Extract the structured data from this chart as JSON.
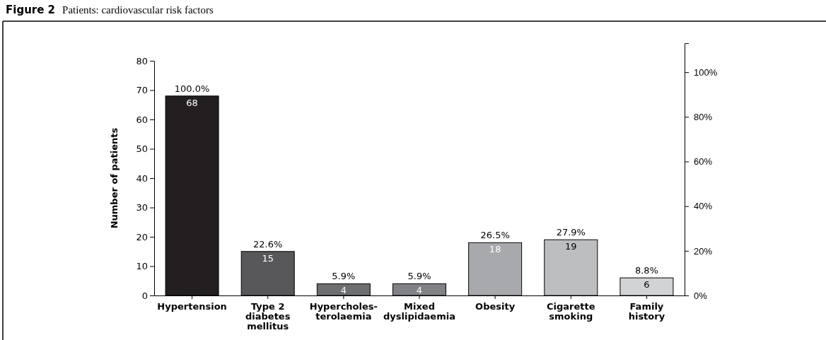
{
  "chart_data": {
    "type": "bar",
    "title": "Figure 2  Patients: cardiovascular risk factors",
    "ylabel": "Number of patients",
    "categories": [
      "Hypertension",
      "Type 2 diabetes mellitus",
      "Hypercholes-terolaemia",
      "Mixed dyslipidaemia",
      "Obesity",
      "Cigarette smoking",
      "Family history"
    ],
    "values": [
      68,
      15,
      4,
      4,
      18,
      19,
      6
    ],
    "colors": [
      "#231f20",
      "#58585a",
      "#6d6e70",
      "#808285",
      "#a7a9ac",
      "#bcbec0",
      "#d1d3d4"
    ],
    "annotations": [
      {
        "text": "100.0%",
        "x": "Hypertension",
        "y": 68
      },
      {
        "text": "22.6%",
        "x": "Type 2 diabetes mellitus",
        "y": 15
      },
      {
        "text": "5.9%",
        "x": "Hypercholes-terolaemia",
        "y": 4
      },
      {
        "text": "5.9%",
        "x": "Mixed dyslipidaemia",
        "y": 4
      },
      {
        "text": "26.5%",
        "x": "Obesity",
        "y": 18
      },
      {
        "text": "27.9%",
        "x": "Cigarette smoking",
        "y": 19
      },
      {
        "text": "8.8%",
        "x": "Family history",
        "y": 6
      }
    ],
    "data_labels": true,
    "ylim": [
      0,
      80
    ],
    "yticks": [
      0,
      10,
      20,
      30,
      40,
      50,
      60,
      70,
      80
    ],
    "y2lim": [
      0,
      113
    ],
    "y2ticks": [
      {
        "value": 0,
        "label": "0%"
      },
      {
        "value": 20,
        "label": "20%"
      },
      {
        "value": 40,
        "label": "40%"
      },
      {
        "value": 60,
        "label": "60%"
      },
      {
        "value": 80,
        "label": "80%"
      },
      {
        "value": 100,
        "label": "100%"
      }
    ],
    "grid": false
  }
}
